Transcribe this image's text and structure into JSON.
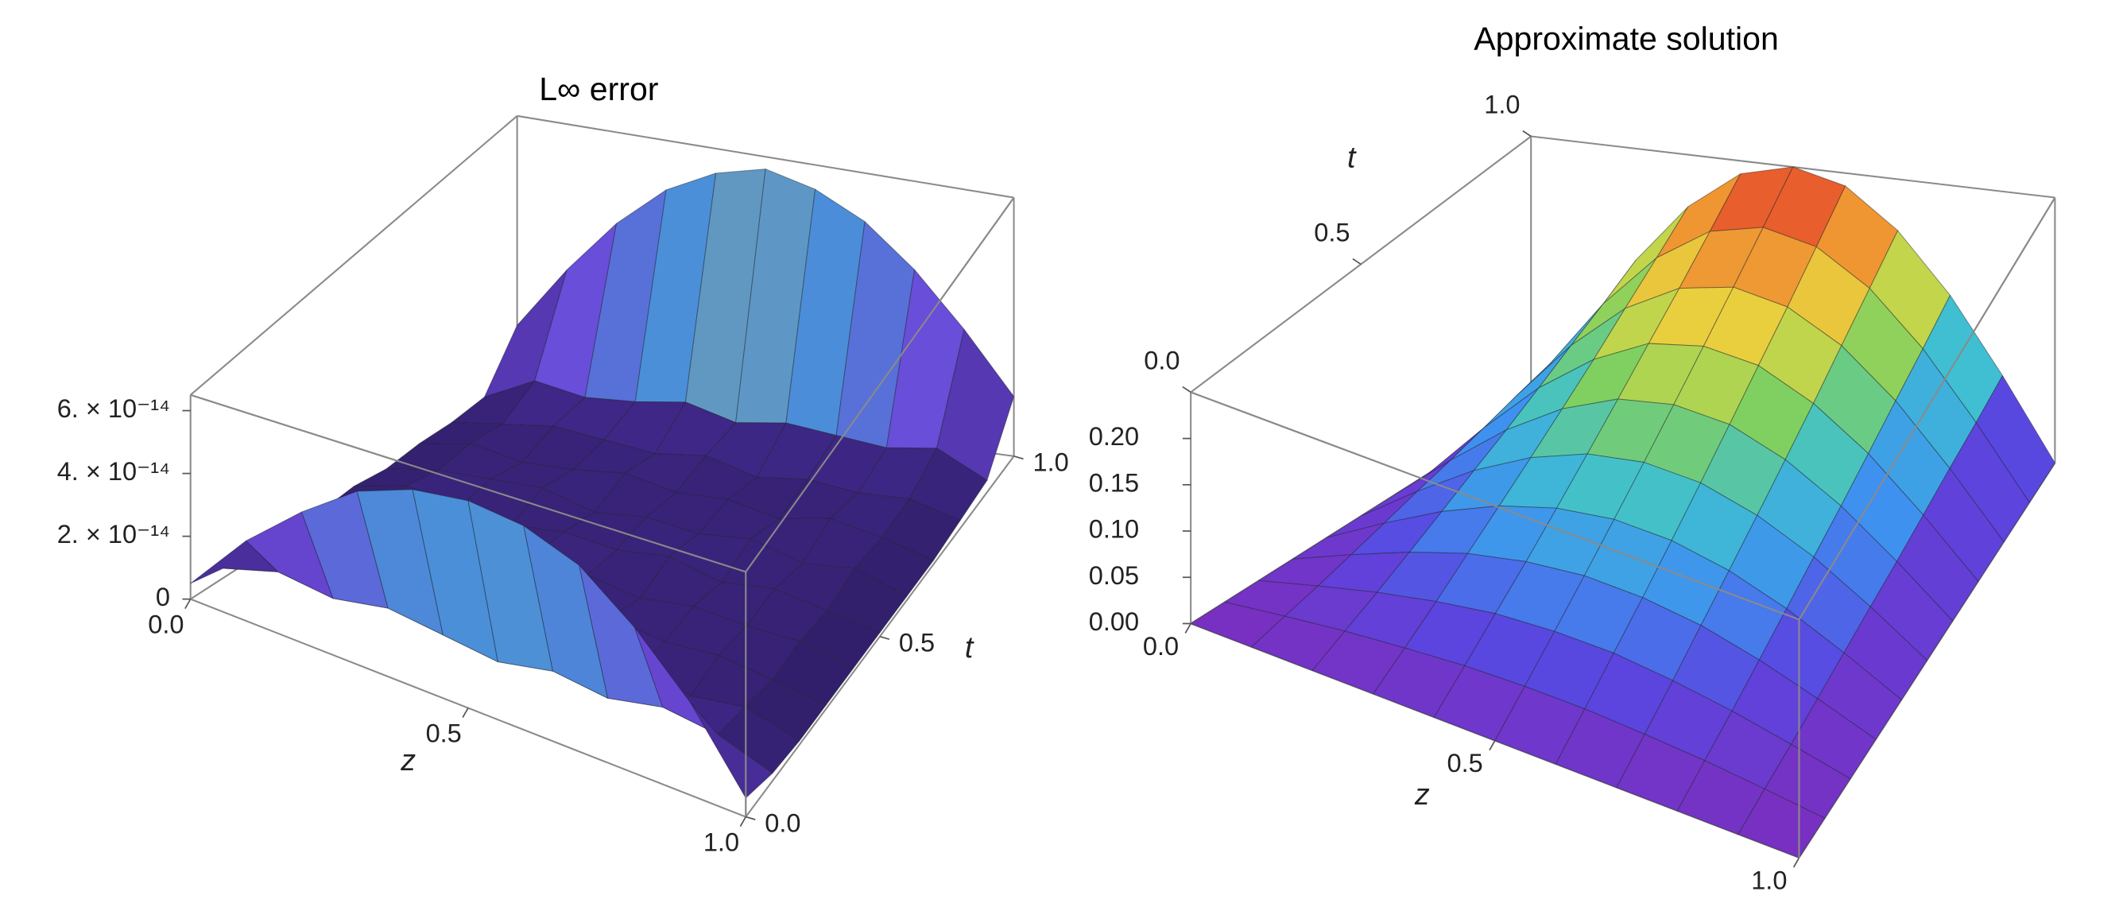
{
  "chart_data": [
    {
      "type": "surface3d",
      "title": "L∞ error",
      "xlabel": "z",
      "ylabel": "t",
      "x": [
        0,
        0.1,
        0.2,
        0.3,
        0.4,
        0.5,
        0.6,
        0.7,
        0.8,
        0.9,
        1
      ],
      "y": [
        0,
        0.1,
        0.2,
        0.3,
        0.4,
        0.5,
        0.6,
        0.7,
        0.8,
        0.9,
        1
      ],
      "values": [
        [
          5e-15,
          2.5e-14,
          4e-14,
          5.2e-14,
          5.8e-14,
          6e-14,
          5.8e-14,
          5.2e-14,
          4e-14,
          2.5e-14,
          5e-15
        ],
        [
          3e-15,
          8e-15,
          6e-15,
          9e-15,
          7e-15,
          5e-15,
          8e-15,
          6e-15,
          9e-15,
          7e-15,
          2e-15
        ],
        [
          2e-15,
          4e-15,
          6e-15,
          3e-15,
          5e-15,
          7e-15,
          4e-15,
          6e-15,
          3e-15,
          5e-15,
          1e-15
        ],
        [
          2e-15,
          5e-15,
          3e-15,
          6e-15,
          4e-15,
          3e-15,
          6e-15,
          4e-15,
          5e-15,
          3e-15,
          1e-15
        ],
        [
          1e-15,
          3e-15,
          5e-15,
          4e-15,
          6e-15,
          5e-15,
          3e-15,
          5e-15,
          4e-15,
          4e-15,
          1e-15
        ],
        [
          2e-15,
          6e-15,
          4e-15,
          3e-15,
          5e-15,
          4e-15,
          6e-15,
          3e-15,
          5e-15,
          3e-15,
          1e-15
        ],
        [
          1e-15,
          4e-15,
          5e-15,
          6e-15,
          3e-15,
          5e-15,
          4e-15,
          6e-15,
          3e-15,
          5e-15,
          1e-15
        ],
        [
          2e-15,
          5e-15,
          3e-15,
          4e-15,
          6e-15,
          4e-15,
          5e-15,
          3e-15,
          6e-15,
          4e-15,
          1e-15
        ],
        [
          2e-15,
          4e-15,
          6e-15,
          5e-15,
          4e-15,
          6e-15,
          3e-15,
          5e-15,
          4e-15,
          5e-15,
          2e-15
        ],
        [
          3e-15,
          9e-15,
          7e-15,
          8e-15,
          1e-14,
          7e-15,
          9e-15,
          8e-15,
          7e-15,
          9e-15,
          3e-15
        ],
        [
          1.5e-14,
          3e-14,
          4.3e-14,
          5.3e-14,
          5.9e-14,
          6.2e-14,
          5.9e-14,
          5.3e-14,
          4.3e-14,
          3e-14,
          1.5e-14
        ]
      ],
      "xlim": [
        0,
        1
      ],
      "ylim": [
        0,
        1
      ],
      "zlim": [
        0,
        6.5e-14
      ],
      "xticks": [
        {
          "value": 0,
          "label": "0.0"
        },
        0.5,
        {
          "value": 1,
          "label": "1.0"
        }
      ],
      "yticks": [
        {
          "value": 0,
          "label": "0.0"
        },
        0.5,
        {
          "value": 1,
          "label": "1.0"
        }
      ],
      "zticks": [
        0,
        {
          "value": 2e-14,
          "label": "2. × 10⁻¹⁴"
        },
        {
          "value": 4e-14,
          "label": "4. × 10⁻¹⁴"
        },
        {
          "value": 6e-14,
          "label": "6. × 10⁻¹⁴"
        }
      ],
      "colors": [
        "#2b1b5e",
        "#4b2fa0",
        "#6a4ad8",
        "#4a8fd8",
        "#c8c060",
        "#e89040",
        "#c83020"
      ]
    },
    {
      "type": "surface3d",
      "title": "Approximate  solution",
      "xlabel": "z",
      "ylabel": "t",
      "x": [
        0,
        0.1,
        0.2,
        0.3,
        0.4,
        0.5,
        0.6,
        0.7,
        0.8,
        0.9,
        1
      ],
      "y": [
        0,
        0.1,
        0.2,
        0.3,
        0.4,
        0.5,
        0.6,
        0.7,
        0.8,
        0.9,
        1
      ],
      "values": [
        [
          0,
          0,
          0,
          0,
          0,
          0,
          0,
          0,
          0,
          0,
          0
        ],
        [
          0,
          0.008,
          0.015,
          0.02,
          0.024,
          0.025,
          0.024,
          0.02,
          0.015,
          0.008,
          0
        ],
        [
          0,
          0.015,
          0.029,
          0.04,
          0.048,
          0.05,
          0.048,
          0.04,
          0.029,
          0.015,
          0
        ],
        [
          0,
          0.023,
          0.044,
          0.061,
          0.071,
          0.075,
          0.071,
          0.061,
          0.044,
          0.023,
          0
        ],
        [
          0,
          0.031,
          0.059,
          0.081,
          0.095,
          0.1,
          0.095,
          0.081,
          0.059,
          0.031,
          0
        ],
        [
          0,
          0.039,
          0.074,
          0.101,
          0.119,
          0.125,
          0.119,
          0.101,
          0.074,
          0.039,
          0
        ],
        [
          0,
          0.046,
          0.088,
          0.121,
          0.143,
          0.15,
          0.143,
          0.121,
          0.088,
          0.046,
          0
        ],
        [
          0,
          0.054,
          0.103,
          0.141,
          0.167,
          0.175,
          0.167,
          0.141,
          0.103,
          0.054,
          0
        ],
        [
          0,
          0.062,
          0.118,
          0.162,
          0.19,
          0.2,
          0.19,
          0.162,
          0.118,
          0.062,
          0
        ],
        [
          0,
          0.069,
          0.132,
          0.182,
          0.214,
          0.225,
          0.214,
          0.182,
          0.132,
          0.069,
          0
        ],
        [
          0,
          0.077,
          0.147,
          0.202,
          0.238,
          0.25,
          0.238,
          0.202,
          0.147,
          0.077,
          0
        ]
      ],
      "xlim": [
        0,
        1
      ],
      "ylim": [
        0,
        1
      ],
      "zlim": [
        0,
        0.25
      ],
      "xticks": [
        {
          "value": 0,
          "label": "0.0"
        },
        0.5,
        {
          "value": 1,
          "label": "1.0"
        }
      ],
      "yticks": [
        {
          "value": 0,
          "label": "0.0"
        },
        0.5,
        {
          "value": 1,
          "label": "1.0"
        }
      ],
      "zticks": [
        {
          "value": 0,
          "label": "0.00"
        },
        0.05,
        {
          "value": 0.1,
          "label": "0.10"
        },
        0.15,
        {
          "value": 0.2,
          "label": "0.20"
        }
      ],
      "colors": [
        "#7a2fc0",
        "#5a46e0",
        "#3f8ff0",
        "#3fc0d0",
        "#7fd060",
        "#e8d840",
        "#f08a30",
        "#e03028"
      ]
    }
  ]
}
